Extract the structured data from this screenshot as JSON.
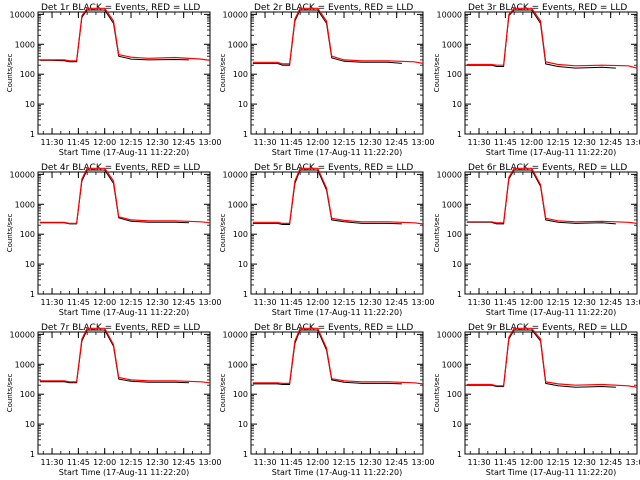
{
  "figure": {
    "xlabel": "Start Time (17-Aug-11 11:22:20)",
    "ylabel": "Counts/sec",
    "x_tick_labels": [
      "11:30",
      "11:45",
      "12:00",
      "12:15",
      "12:30",
      "12:45",
      "13:00"
    ],
    "y_tick_labels": [
      "1",
      "10",
      "100",
      "1000",
      "10000"
    ],
    "colors": {
      "events": "#000000",
      "lld": "#ff0000",
      "background": "#ffffff"
    }
  },
  "chart_data": [
    {
      "type": "line",
      "title": "Det 1r BLACK = Events, RED = LLD",
      "xlabel": "Start Time (17-Aug-11 11:22:20)",
      "ylabel": "Counts/sec",
      "y_scale": "log",
      "ylim": [
        1,
        12000
      ],
      "xlim": [
        "11:22",
        "13:00"
      ],
      "series": [
        {
          "name": "Events",
          "color": "#000000",
          "x": [
            "11:23",
            "11:30",
            "11:37",
            "11:40",
            "11:44",
            "11:47",
            "11:50",
            "12:00",
            "12:05",
            "12:08",
            "12:15",
            "12:25",
            "12:40",
            "12:48"
          ],
          "y": [
            290,
            290,
            280,
            260,
            260,
            8000,
            14000,
            14000,
            5000,
            400,
            320,
            300,
            310,
            300
          ]
        },
        {
          "name": "LLD",
          "color": "#ff0000",
          "x": [
            "11:23",
            "11:30",
            "11:37",
            "11:40",
            "11:44",
            "11:47",
            "11:50",
            "12:00",
            "12:05",
            "12:08",
            "12:15",
            "12:25",
            "12:40",
            "12:55",
            "13:00"
          ],
          "y": [
            300,
            300,
            300,
            280,
            280,
            9000,
            16000,
            16000,
            6000,
            450,
            370,
            340,
            360,
            320,
            290
          ]
        }
      ]
    },
    {
      "type": "line",
      "title": "Det 2r BLACK = Events, RED = LLD",
      "xlabel": "Start Time (17-Aug-11 11:22:20)",
      "ylabel": "Counts/sec",
      "y_scale": "log",
      "ylim": [
        1,
        12000
      ],
      "xlim": [
        "11:22",
        "13:00"
      ],
      "series": [
        {
          "name": "Events",
          "color": "#000000",
          "x": [
            "11:23",
            "11:30",
            "11:37",
            "11:40",
            "11:44",
            "11:47",
            "11:50",
            "12:00",
            "12:05",
            "12:08",
            "12:15",
            "12:25",
            "12:40",
            "12:48"
          ],
          "y": [
            230,
            230,
            230,
            200,
            200,
            6000,
            14000,
            14000,
            5000,
            350,
            270,
            250,
            250,
            230
          ]
        },
        {
          "name": "LLD",
          "color": "#ff0000",
          "x": [
            "11:23",
            "11:30",
            "11:37",
            "11:40",
            "11:44",
            "11:47",
            "11:50",
            "12:00",
            "12:05",
            "12:08",
            "12:15",
            "12:25",
            "12:40",
            "12:55",
            "13:00"
          ],
          "y": [
            250,
            250,
            250,
            220,
            220,
            7000,
            16000,
            16000,
            6000,
            400,
            300,
            280,
            280,
            260,
            230
          ]
        }
      ]
    },
    {
      "type": "line",
      "title": "Det 3r BLACK = Events, RED = LLD",
      "xlabel": "Start Time (17-Aug-11 11:22:20)",
      "ylabel": "Counts/sec",
      "y_scale": "log",
      "ylim": [
        1,
        12000
      ],
      "xlim": [
        "11:22",
        "13:00"
      ],
      "series": [
        {
          "name": "Events",
          "color": "#000000",
          "x": [
            "11:23",
            "11:30",
            "11:37",
            "11:40",
            "11:44",
            "11:47",
            "11:50",
            "12:00",
            "12:05",
            "12:08",
            "12:15",
            "12:25",
            "12:40",
            "12:48"
          ],
          "y": [
            200,
            200,
            200,
            180,
            180,
            9000,
            14000,
            14000,
            5000,
            220,
            180,
            160,
            170,
            160
          ]
        },
        {
          "name": "LLD",
          "color": "#ff0000",
          "x": [
            "11:23",
            "11:30",
            "11:37",
            "11:40",
            "11:44",
            "11:47",
            "11:50",
            "12:00",
            "12:05",
            "12:08",
            "12:15",
            "12:25",
            "12:40",
            "12:55",
            "13:00"
          ],
          "y": [
            210,
            210,
            210,
            200,
            200,
            10000,
            16000,
            16000,
            6000,
            260,
            210,
            190,
            200,
            190,
            160
          ]
        }
      ]
    },
    {
      "type": "line",
      "title": "Det 4r BLACK = Events, RED = LLD",
      "xlabel": "Start Time (17-Aug-11 11:22:20)",
      "ylabel": "Counts/sec",
      "y_scale": "log",
      "ylim": [
        1,
        12000
      ],
      "xlim": [
        "11:22",
        "13:00"
      ],
      "series": [
        {
          "name": "Events",
          "color": "#000000",
          "x": [
            "11:23",
            "11:30",
            "11:37",
            "11:40",
            "11:44",
            "11:47",
            "11:50",
            "12:00",
            "12:05",
            "12:08",
            "12:15",
            "12:25",
            "12:40",
            "12:48"
          ],
          "y": [
            240,
            240,
            240,
            220,
            220,
            6000,
            14000,
            14000,
            5000,
            350,
            270,
            250,
            250,
            240
          ]
        },
        {
          "name": "LLD",
          "color": "#ff0000",
          "x": [
            "11:23",
            "11:30",
            "11:37",
            "11:40",
            "11:44",
            "11:47",
            "11:50",
            "12:00",
            "12:05",
            "12:08",
            "12:15",
            "12:25",
            "12:40",
            "12:55",
            "13:00"
          ],
          "y": [
            250,
            250,
            250,
            230,
            230,
            7000,
            16000,
            16000,
            6000,
            380,
            300,
            280,
            280,
            260,
            240
          ]
        }
      ]
    },
    {
      "type": "line",
      "title": "Det 5r BLACK = Events, RED = LLD",
      "xlabel": "Start Time (17-Aug-11 11:22:20)",
      "ylabel": "Counts/sec",
      "y_scale": "log",
      "ylim": [
        1,
        12000
      ],
      "xlim": [
        "11:22",
        "13:00"
      ],
      "series": [
        {
          "name": "Events",
          "color": "#000000",
          "x": [
            "11:23",
            "11:30",
            "11:37",
            "11:40",
            "11:44",
            "11:47",
            "11:50",
            "12:00",
            "12:05",
            "12:08",
            "12:15",
            "12:25",
            "12:40",
            "12:48"
          ],
          "y": [
            230,
            230,
            230,
            210,
            210,
            5000,
            14000,
            14000,
            3000,
            300,
            260,
            230,
            230,
            220
          ]
        },
        {
          "name": "LLD",
          "color": "#ff0000",
          "x": [
            "11:23",
            "11:30",
            "11:37",
            "11:40",
            "11:44",
            "11:47",
            "11:50",
            "12:00",
            "12:05",
            "12:08",
            "12:15",
            "12:25",
            "12:40",
            "12:55",
            "13:00"
          ],
          "y": [
            250,
            250,
            250,
            230,
            230,
            6000,
            16000,
            16000,
            3500,
            340,
            290,
            260,
            260,
            240,
            220
          ]
        }
      ]
    },
    {
      "type": "line",
      "title": "Det 6r BLACK = Events, RED = LLD",
      "xlabel": "Start Time (17-Aug-11 11:22:20)",
      "ylabel": "Counts/sec",
      "y_scale": "log",
      "ylim": [
        1,
        12000
      ],
      "xlim": [
        "11:22",
        "13:00"
      ],
      "series": [
        {
          "name": "Events",
          "color": "#000000",
          "x": [
            "11:23",
            "11:30",
            "11:37",
            "11:40",
            "11:44",
            "11:47",
            "11:50",
            "12:00",
            "12:05",
            "12:08",
            "12:15",
            "12:25",
            "12:40",
            "12:48"
          ],
          "y": [
            250,
            250,
            250,
            220,
            220,
            7000,
            14000,
            14000,
            4000,
            300,
            250,
            230,
            240,
            220
          ]
        },
        {
          "name": "LLD",
          "color": "#ff0000",
          "x": [
            "11:23",
            "11:30",
            "11:37",
            "11:40",
            "11:44",
            "11:47",
            "11:50",
            "12:00",
            "12:05",
            "12:08",
            "12:15",
            "12:25",
            "12:40",
            "12:55",
            "13:00"
          ],
          "y": [
            260,
            260,
            260,
            240,
            240,
            8000,
            16000,
            16000,
            4500,
            340,
            280,
            260,
            270,
            250,
            230
          ]
        }
      ]
    },
    {
      "type": "line",
      "title": "Det 7r BLACK = Events, RED = LLD",
      "xlabel": "Start Time (17-Aug-11 11:22:20)",
      "ylabel": "Counts/sec",
      "y_scale": "log",
      "ylim": [
        1,
        12000
      ],
      "xlim": [
        "11:22",
        "13:00"
      ],
      "series": [
        {
          "name": "Events",
          "color": "#000000",
          "x": [
            "11:23",
            "11:30",
            "11:37",
            "11:40",
            "11:44",
            "11:47",
            "11:50",
            "12:00",
            "12:05",
            "12:08",
            "12:15",
            "12:25",
            "12:40",
            "12:48"
          ],
          "y": [
            260,
            260,
            260,
            240,
            240,
            6000,
            14000,
            14000,
            4000,
            320,
            270,
            250,
            250,
            240
          ]
        },
        {
          "name": "LLD",
          "color": "#ff0000",
          "x": [
            "11:23",
            "11:30",
            "11:37",
            "11:40",
            "11:44",
            "11:47",
            "11:50",
            "12:00",
            "12:05",
            "12:08",
            "12:15",
            "12:25",
            "12:40",
            "12:55",
            "13:00"
          ],
          "y": [
            280,
            280,
            280,
            260,
            260,
            7000,
            16000,
            16000,
            4500,
            360,
            300,
            280,
            280,
            260,
            240
          ]
        }
      ]
    },
    {
      "type": "line",
      "title": "Det 8r BLACK = Events, RED = LLD",
      "xlabel": "Start Time (17-Aug-11 11:22:20)",
      "ylabel": "Counts/sec",
      "y_scale": "log",
      "ylim": [
        1,
        12000
      ],
      "xlim": [
        "11:22",
        "13:00"
      ],
      "series": [
        {
          "name": "Events",
          "color": "#000000",
          "x": [
            "11:23",
            "11:30",
            "11:37",
            "11:40",
            "11:44",
            "11:47",
            "11:50",
            "12:00",
            "12:05",
            "12:08",
            "12:15",
            "12:25",
            "12:40",
            "12:48"
          ],
          "y": [
            220,
            220,
            220,
            210,
            210,
            5000,
            14000,
            14000,
            3000,
            300,
            250,
            230,
            230,
            220
          ]
        },
        {
          "name": "LLD",
          "color": "#ff0000",
          "x": [
            "11:23",
            "11:30",
            "11:37",
            "11:40",
            "11:44",
            "11:47",
            "11:50",
            "12:00",
            "12:05",
            "12:08",
            "12:15",
            "12:25",
            "12:40",
            "12:55",
            "13:00"
          ],
          "y": [
            240,
            240,
            240,
            230,
            230,
            6000,
            16000,
            16000,
            3500,
            330,
            280,
            260,
            260,
            240,
            220
          ]
        }
      ]
    },
    {
      "type": "line",
      "title": "Det 9r BLACK = Events, RED = LLD",
      "xlabel": "Start Time (17-Aug-11 11:22:20)",
      "ylabel": "Counts/sec",
      "y_scale": "log",
      "ylim": [
        1,
        12000
      ],
      "xlim": [
        "11:22",
        "13:00"
      ],
      "series": [
        {
          "name": "Events",
          "color": "#000000",
          "x": [
            "11:23",
            "11:30",
            "11:37",
            "11:40",
            "11:44",
            "11:47",
            "11:50",
            "12:00",
            "12:05",
            "12:08",
            "12:15",
            "12:25",
            "12:40",
            "12:48"
          ],
          "y": [
            200,
            200,
            200,
            180,
            180,
            7000,
            14000,
            14000,
            6000,
            230,
            190,
            170,
            180,
            170
          ]
        },
        {
          "name": "LLD",
          "color": "#ff0000",
          "x": [
            "11:23",
            "11:30",
            "11:37",
            "11:40",
            "11:44",
            "11:47",
            "11:50",
            "12:00",
            "12:05",
            "12:08",
            "12:15",
            "12:25",
            "12:40",
            "12:55",
            "13:00"
          ],
          "y": [
            210,
            210,
            210,
            190,
            190,
            8000,
            16000,
            16000,
            7000,
            260,
            220,
            200,
            210,
            190,
            170
          ]
        }
      ]
    }
  ]
}
